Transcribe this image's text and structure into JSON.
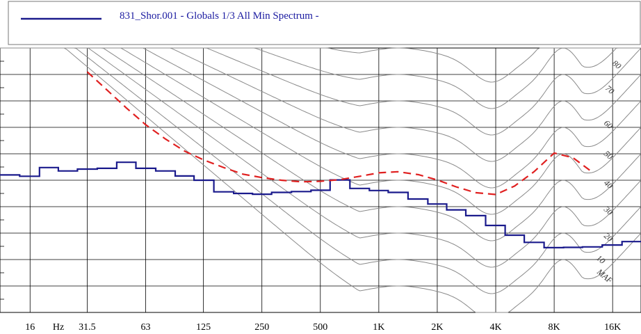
{
  "chart_data": {
    "type": "line",
    "title": "",
    "legend": {
      "placement": "top",
      "entries": [
        {
          "label": "831_Shor.001 - Globals 1/3 All Min Spectrum -",
          "color": "#1a1a8c"
        }
      ]
    },
    "x_axis": {
      "scale": "log",
      "range_hz": [
        11.2,
        22400
      ],
      "tick_labels": [
        "16",
        "Hz",
        "31.5",
        "63",
        "125",
        "250",
        "500",
        "1K",
        "2K",
        "4K",
        "8K",
        "16K"
      ],
      "tick_values_hz": [
        16,
        22.4,
        31.5,
        63,
        125,
        250,
        500,
        1000,
        2000,
        4000,
        8000,
        16000
      ]
    },
    "y_axis": {
      "range_db": [
        -10,
        90
      ],
      "tick_labels_visible": false,
      "grid_step_db": 10
    },
    "grid": true,
    "series": [
      {
        "color": "#1a1a8c",
        "style": "step",
        "bands_hz": [
          12.5,
          16,
          20,
          25,
          31.5,
          40,
          50,
          63,
          80,
          100,
          125,
          160,
          200,
          250,
          315,
          400,
          500,
          630,
          800,
          1000,
          1250,
          1600,
          2000,
          2500,
          3150,
          4000,
          5000,
          6300,
          8000,
          10000,
          12500,
          16000,
          20000
        ],
        "values_db": [
          42,
          41.5,
          44.8,
          43.5,
          44.2,
          44.5,
          46.8,
          44.5,
          43.5,
          41.6,
          40,
          35.6,
          35,
          34.7,
          35.4,
          35.7,
          36.2,
          40.1,
          36.9,
          36.1,
          35.4,
          32.9,
          31,
          28.8,
          26.6,
          22.9,
          19.2,
          16.5,
          14.5,
          14.6,
          14.8,
          15.5,
          16.8
        ]
      },
      {
        "color": "#e02020",
        "style": "dashed",
        "bands_hz": [
          31.5,
          40,
          50,
          63,
          80,
          100,
          125,
          160,
          200,
          250,
          315,
          400,
          500,
          630,
          800,
          1000,
          1250,
          1600,
          2000,
          2500,
          3150,
          4000,
          5000,
          6300,
          8000,
          10000,
          12500
        ],
        "values_db": [
          81,
          74,
          67.4,
          61,
          55.5,
          51,
          47.7,
          44.7,
          42.3,
          41,
          40,
          39.4,
          39.6,
          40.2,
          41.5,
          42.8,
          43.2,
          42.1,
          40.1,
          37.5,
          35.3,
          34.6,
          37.8,
          43.2,
          50.3,
          48.5,
          43.2
        ]
      }
    ],
    "contour_labels": [
      "80",
      "70",
      "60",
      "50",
      "40",
      "30",
      "20",
      "10",
      "MAF"
    ]
  }
}
